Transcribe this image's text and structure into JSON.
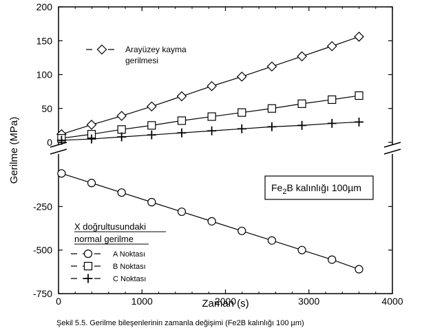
{
  "caption": "Şekil 5.5. Gerilme bileşenlerinin zamanla değişimi (Fe2B kalınlığı 100 µm)",
  "chart_data": {
    "type": "line",
    "xlabel": "Zaman (s)",
    "ylabel": "Gerilme (MPa)",
    "xlim": [
      0,
      4000
    ],
    "x_ticks": [
      "0",
      "1000",
      "2000",
      "3000",
      "4000"
    ],
    "y_upper_ticks": [
      "0",
      "50",
      "100",
      "150",
      "200"
    ],
    "y_lower_ticks": [
      "-250",
      "-500",
      "-750"
    ],
    "y_upper_range": [
      0,
      200
    ],
    "y_lower_range": [
      -750,
      0
    ],
    "axis_break": "between 0 and -250 (upper scale 0-200, lower scale 0 to -750)",
    "grid": false,
    "thickness_note": {
      "prefix": "Fe",
      "subscript": "2",
      "suffix": "B kalınlığı 100",
      "unit": "µm"
    },
    "legend_title_line1": "X doğrultusundaki",
    "legend_title_line2": "normal gerilme",
    "shear_label_line1": "Arayüzey kayma",
    "shear_label_line2": "gerilmesi",
    "x": [
      36,
      396,
      756,
      1116,
      1476,
      1836,
      2196,
      2556,
      2916,
      3276,
      3600
    ],
    "series": [
      {
        "name": "Arayüzey kayma gerilmesi",
        "marker": "diamond",
        "panel": "upper",
        "values": [
          12,
          26,
          39,
          53,
          68,
          83,
          97,
          112,
          127,
          142,
          156
        ]
      },
      {
        "name": "B Noktası",
        "marker": "square",
        "panel": "upper",
        "values": [
          6,
          12,
          19,
          25,
          32,
          38,
          44,
          50,
          57,
          63,
          69
        ]
      },
      {
        "name": "C Noktası",
        "marker": "plus",
        "panel": "upper",
        "values": [
          3,
          5,
          8,
          11,
          14,
          17,
          20,
          23,
          25,
          28,
          30
        ]
      },
      {
        "name": "A Noktası",
        "marker": "circle",
        "panel": "lower",
        "values": [
          -60,
          -115,
          -170,
          -225,
          -280,
          -335,
          -390,
          -445,
          -500,
          -555,
          -610
        ]
      }
    ]
  }
}
